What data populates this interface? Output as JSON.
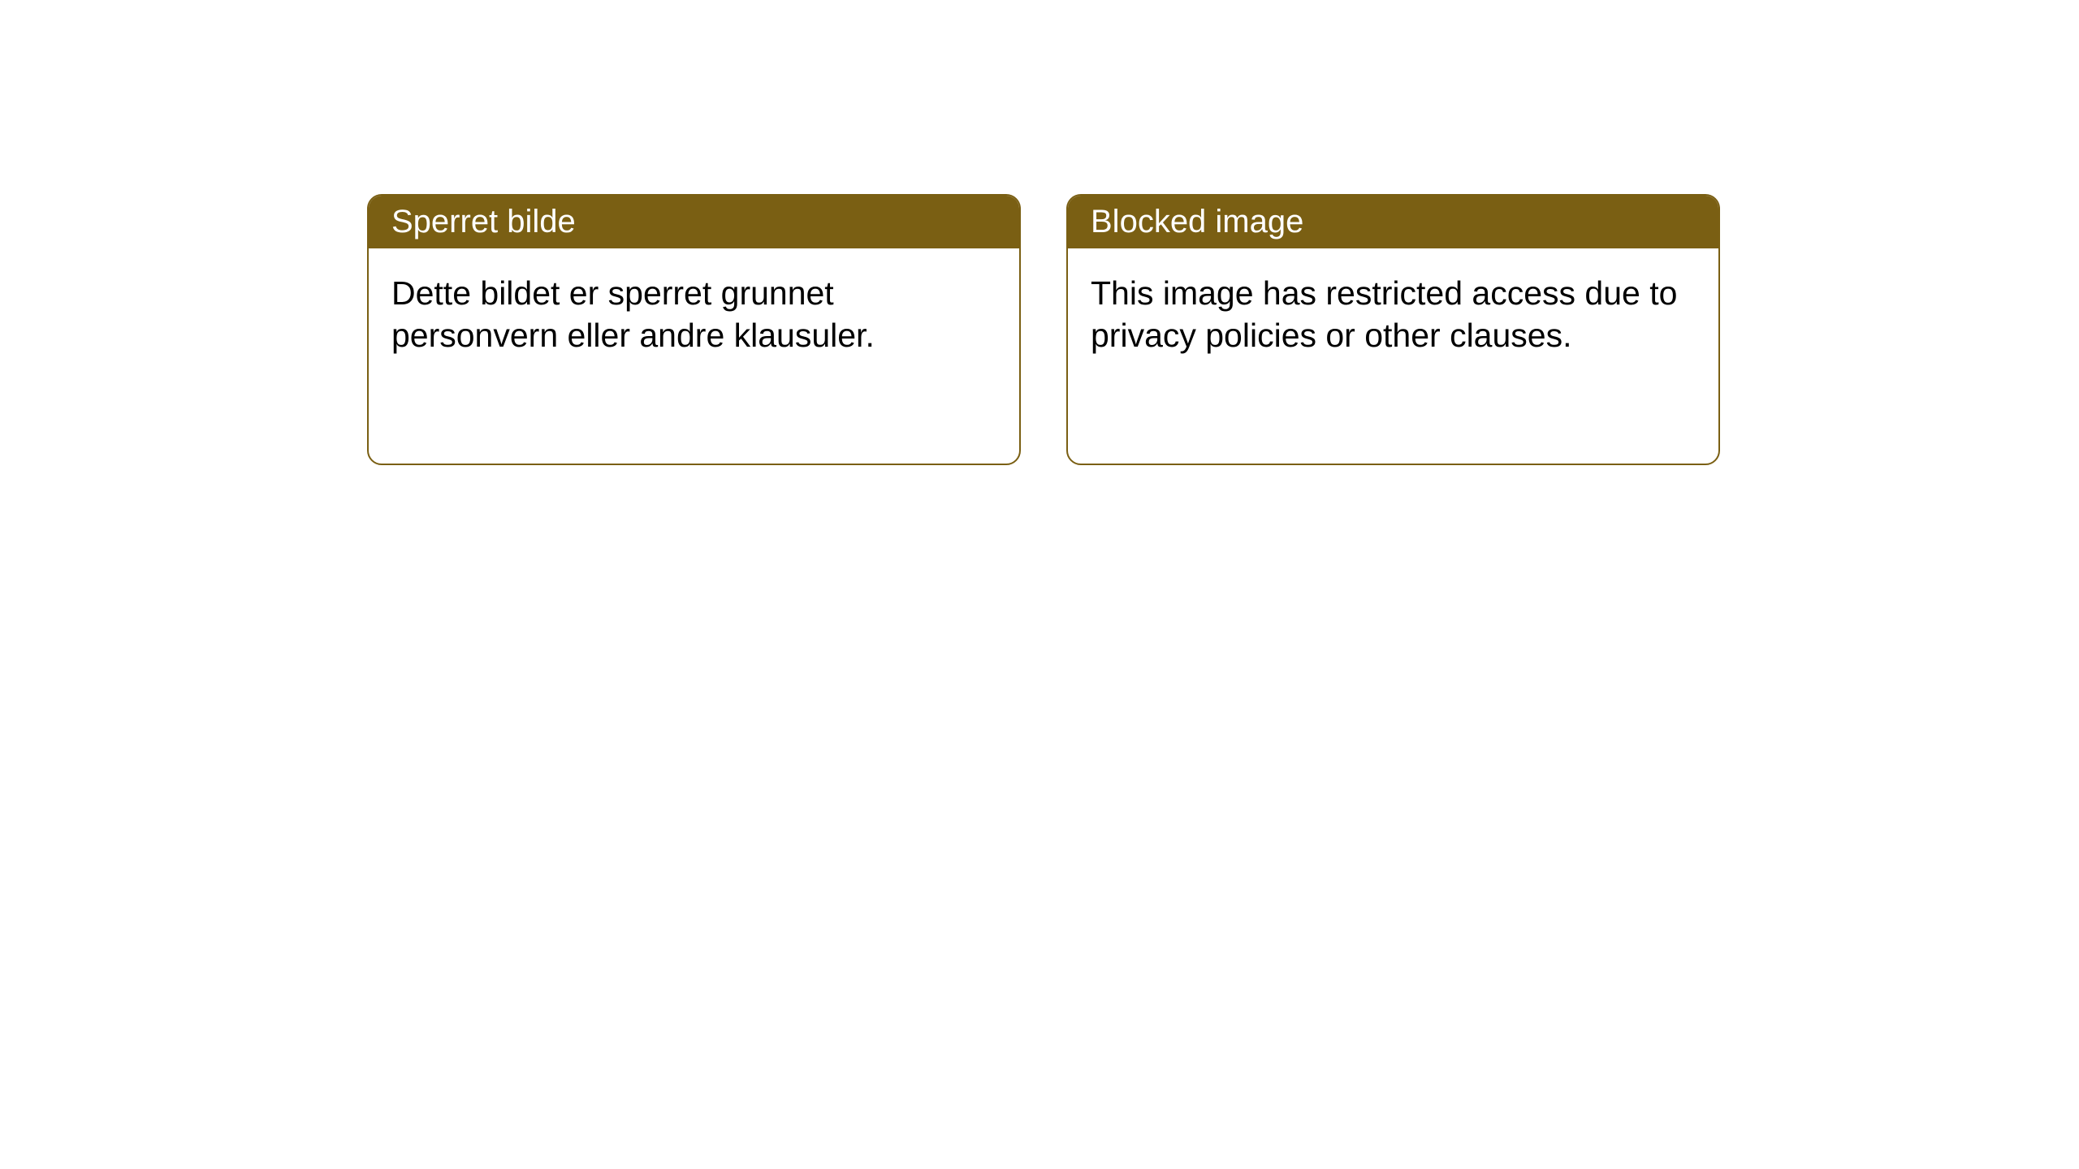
{
  "panel": {
    "background_color": "#ffffff",
    "card_border_color": "#7a5f13",
    "card_border_radius": 18,
    "header_background": "#7a5f13",
    "header_text_color": "#ffffff",
    "body_text_color": "#000000",
    "header_fontsize": 40,
    "body_fontsize": 41,
    "cards": [
      {
        "title": "Sperret bilde",
        "body": "Dette bildet er sperret grunnet personvern eller andre klausuler."
      },
      {
        "title": "Blocked image",
        "body": "This image has restricted access due to privacy policies or other clauses."
      }
    ]
  }
}
